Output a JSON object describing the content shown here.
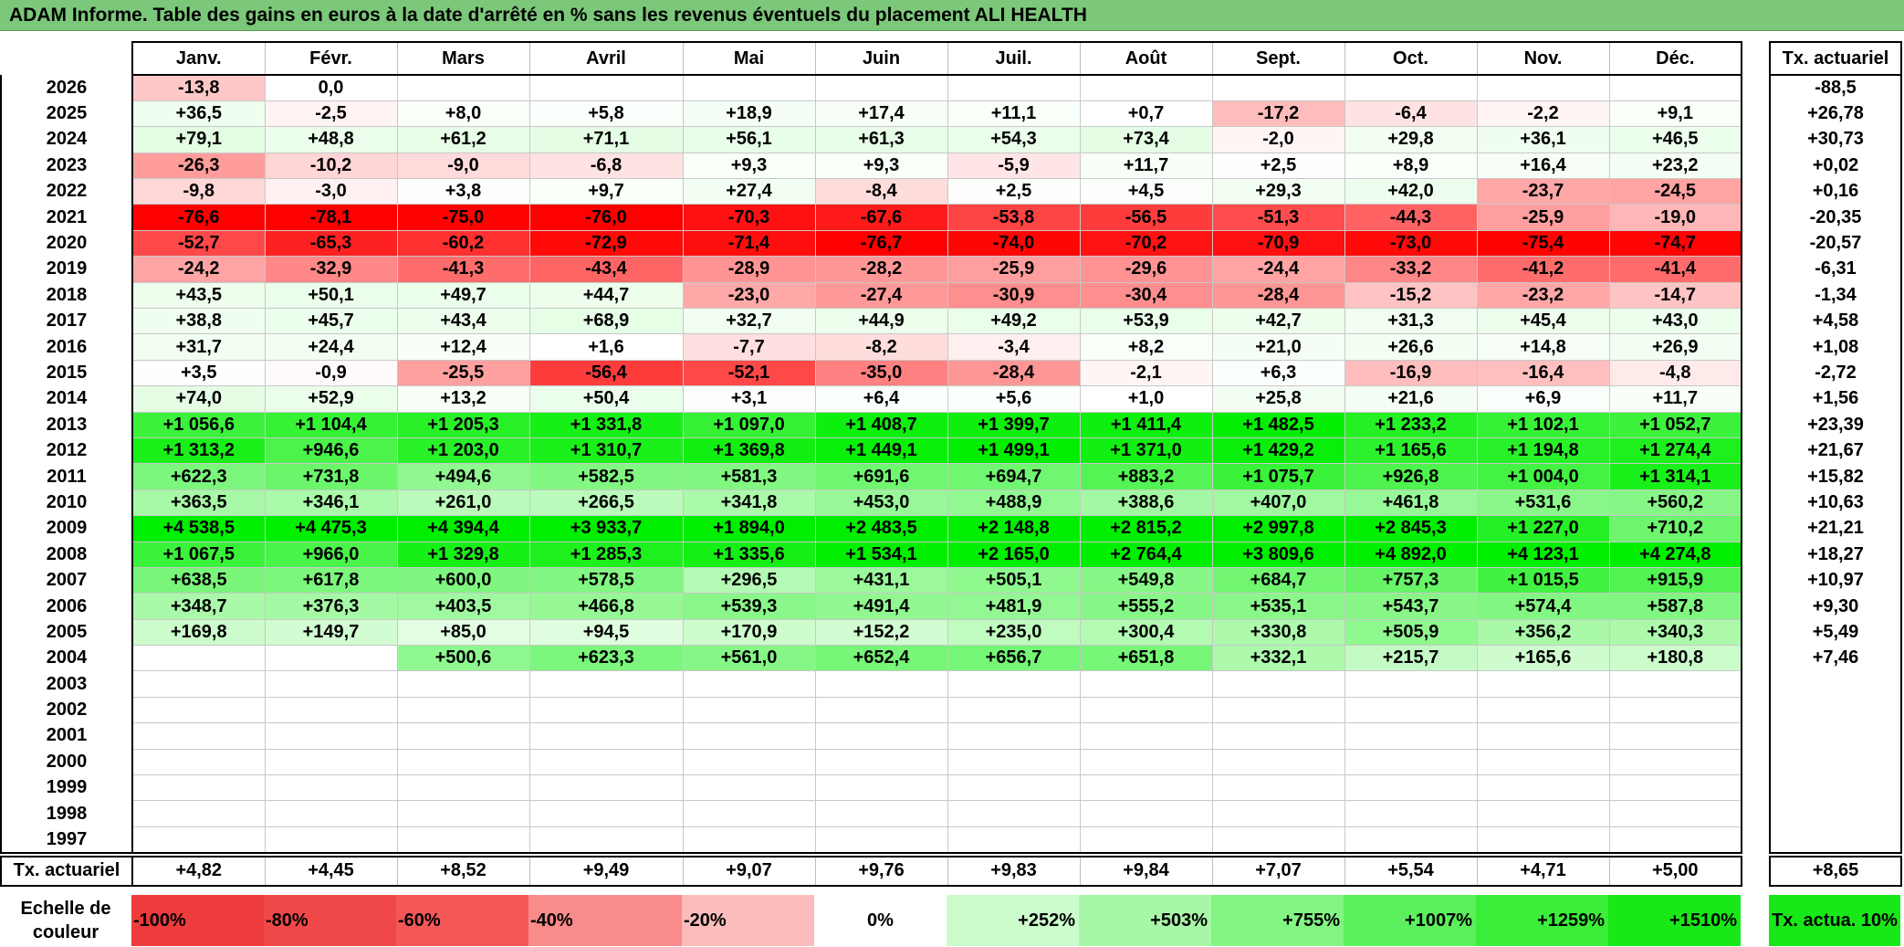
{
  "title": "ADAM Informe. Table des gains en euros à la date d'arrêté en % sans les revenus éventuels du placement ALI HEALTH",
  "months": [
    "Janv.",
    "Févr.",
    "Mars",
    "Avril",
    "Mai",
    "Juin",
    "Juil.",
    "Août",
    "Sept.",
    "Oct.",
    "Nov.",
    "Déc."
  ],
  "annual_header": "Tx. actuariel",
  "rows": [
    {
      "year": "2026",
      "cells": [
        "-13,8",
        "0,0",
        "",
        "",
        "",
        "",
        "",
        "",
        "",
        "",
        "",
        ""
      ],
      "annual": "-88,5"
    },
    {
      "year": "2025",
      "cells": [
        "+36,5",
        "-2,5",
        "+8,0",
        "+5,8",
        "+18,9",
        "+17,4",
        "+11,1",
        "+0,7",
        "-17,2",
        "-6,4",
        "-2,2",
        "+9,1"
      ],
      "annual": "+26,78"
    },
    {
      "year": "2024",
      "cells": [
        "+79,1",
        "+48,8",
        "+61,2",
        "+71,1",
        "+56,1",
        "+61,3",
        "+54,3",
        "+73,4",
        "-2,0",
        "+29,8",
        "+36,1",
        "+46,5"
      ],
      "annual": "+30,73"
    },
    {
      "year": "2023",
      "cells": [
        "-26,3",
        "-10,2",
        "-9,0",
        "-6,8",
        "+9,3",
        "+9,3",
        "-5,9",
        "+11,7",
        "+2,5",
        "+8,9",
        "+16,4",
        "+23,2"
      ],
      "annual": "+0,02"
    },
    {
      "year": "2022",
      "cells": [
        "-9,8",
        "-3,0",
        "+3,8",
        "+9,7",
        "+27,4",
        "-8,4",
        "+2,5",
        "+4,5",
        "+29,3",
        "+42,0",
        "-23,7",
        "-24,5"
      ],
      "annual": "+0,16"
    },
    {
      "year": "2021",
      "cells": [
        "-76,6",
        "-78,1",
        "-75,0",
        "-76,0",
        "-70,3",
        "-67,6",
        "-53,8",
        "-56,5",
        "-51,3",
        "-44,3",
        "-25,9",
        "-19,0"
      ],
      "annual": "-20,35"
    },
    {
      "year": "2020",
      "cells": [
        "-52,7",
        "-65,3",
        "-60,2",
        "-72,9",
        "-71,4",
        "-76,7",
        "-74,0",
        "-70,2",
        "-70,9",
        "-73,0",
        "-75,4",
        "-74,7"
      ],
      "annual": "-20,57"
    },
    {
      "year": "2019",
      "cells": [
        "-24,2",
        "-32,9",
        "-41,3",
        "-43,4",
        "-28,9",
        "-28,2",
        "-25,9",
        "-29,6",
        "-24,4",
        "-33,2",
        "-41,2",
        "-41,4"
      ],
      "annual": "-6,31"
    },
    {
      "year": "2018",
      "cells": [
        "+43,5",
        "+50,1",
        "+49,7",
        "+44,7",
        "-23,0",
        "-27,4",
        "-30,9",
        "-30,4",
        "-28,4",
        "-15,2",
        "-23,2",
        "-14,7"
      ],
      "annual": "-1,34"
    },
    {
      "year": "2017",
      "cells": [
        "+38,8",
        "+45,7",
        "+43,4",
        "+68,9",
        "+32,7",
        "+44,9",
        "+49,2",
        "+53,9",
        "+42,7",
        "+31,3",
        "+45,4",
        "+43,0"
      ],
      "annual": "+4,58"
    },
    {
      "year": "2016",
      "cells": [
        "+31,7",
        "+24,4",
        "+12,4",
        "+1,6",
        "-7,7",
        "-8,2",
        "-3,4",
        "+8,2",
        "+21,0",
        "+26,6",
        "+14,8",
        "+26,9"
      ],
      "annual": "+1,08"
    },
    {
      "year": "2015",
      "cells": [
        "+3,5",
        "-0,9",
        "-25,5",
        "-56,4",
        "-52,1",
        "-35,0",
        "-28,4",
        "-2,1",
        "+6,3",
        "-16,9",
        "-16,4",
        "-4,8"
      ],
      "annual": "-2,72"
    },
    {
      "year": "2014",
      "cells": [
        "+74,0",
        "+52,9",
        "+13,2",
        "+50,4",
        "+3,1",
        "+6,4",
        "+5,6",
        "+1,0",
        "+25,8",
        "+21,6",
        "+6,9",
        "+11,7"
      ],
      "annual": "+1,56"
    },
    {
      "year": "2013",
      "cells": [
        "+1 056,6",
        "+1 104,4",
        "+1 205,3",
        "+1 331,8",
        "+1 097,0",
        "+1 408,7",
        "+1 399,7",
        "+1 411,4",
        "+1 482,5",
        "+1 233,2",
        "+1 102,1",
        "+1 052,7"
      ],
      "annual": "+23,39"
    },
    {
      "year": "2012",
      "cells": [
        "+1 313,2",
        "+946,6",
        "+1 203,0",
        "+1 310,7",
        "+1 369,8",
        "+1 449,1",
        "+1 499,1",
        "+1 371,0",
        "+1 429,2",
        "+1 165,6",
        "+1 194,8",
        "+1 274,4"
      ],
      "annual": "+21,67"
    },
    {
      "year": "2011",
      "cells": [
        "+622,3",
        "+731,8",
        "+494,6",
        "+582,5",
        "+581,3",
        "+691,6",
        "+694,7",
        "+883,2",
        "+1 075,7",
        "+926,8",
        "+1 004,0",
        "+1 314,1"
      ],
      "annual": "+15,82"
    },
    {
      "year": "2010",
      "cells": [
        "+363,5",
        "+346,1",
        "+261,0",
        "+266,5",
        "+341,8",
        "+453,0",
        "+488,9",
        "+388,6",
        "+407,0",
        "+461,8",
        "+531,6",
        "+560,2"
      ],
      "annual": "+10,63"
    },
    {
      "year": "2009",
      "cells": [
        "+4 538,5",
        "+4 475,3",
        "+4 394,4",
        "+3 933,7",
        "+1 894,0",
        "+2 483,5",
        "+2 148,8",
        "+2 815,2",
        "+2 997,8",
        "+2 845,3",
        "+1 227,0",
        "+710,2"
      ],
      "annual": "+21,21"
    },
    {
      "year": "2008",
      "cells": [
        "+1 067,5",
        "+966,0",
        "+1 329,8",
        "+1 285,3",
        "+1 335,6",
        "+1 534,1",
        "+2 165,0",
        "+2 764,4",
        "+3 809,6",
        "+4 892,0",
        "+4 123,1",
        "+4 274,8"
      ],
      "annual": "+18,27"
    },
    {
      "year": "2007",
      "cells": [
        "+638,5",
        "+617,8",
        "+600,0",
        "+578,5",
        "+296,5",
        "+431,1",
        "+505,1",
        "+549,8",
        "+684,7",
        "+757,3",
        "+1 015,5",
        "+915,9"
      ],
      "annual": "+10,97"
    },
    {
      "year": "2006",
      "cells": [
        "+348,7",
        "+376,3",
        "+403,5",
        "+466,8",
        "+539,3",
        "+491,4",
        "+481,9",
        "+555,2",
        "+535,1",
        "+543,7",
        "+574,4",
        "+587,8"
      ],
      "annual": "+9,30"
    },
    {
      "year": "2005",
      "cells": [
        "+169,8",
        "+149,7",
        "+85,0",
        "+94,5",
        "+170,9",
        "+152,2",
        "+235,0",
        "+300,4",
        "+330,8",
        "+505,9",
        "+356,2",
        "+340,3"
      ],
      "annual": "+5,49"
    },
    {
      "year": "2004",
      "cells": [
        "",
        "",
        "+500,6",
        "+623,3",
        "+561,0",
        "+652,4",
        "+656,7",
        "+651,8",
        "+332,1",
        "+215,7",
        "+165,6",
        "+180,8"
      ],
      "annual": "+7,46"
    },
    {
      "year": "2003",
      "cells": [
        "",
        "",
        "",
        "",
        "",
        "",
        "",
        "",
        "",
        "",
        "",
        ""
      ],
      "annual": ""
    },
    {
      "year": "2002",
      "cells": [
        "",
        "",
        "",
        "",
        "",
        "",
        "",
        "",
        "",
        "",
        "",
        ""
      ],
      "annual": ""
    },
    {
      "year": "2001",
      "cells": [
        "",
        "",
        "",
        "",
        "",
        "",
        "",
        "",
        "",
        "",
        "",
        ""
      ],
      "annual": ""
    },
    {
      "year": "2000",
      "cells": [
        "",
        "",
        "",
        "",
        "",
        "",
        "",
        "",
        "",
        "",
        "",
        ""
      ],
      "annual": ""
    },
    {
      "year": "1999",
      "cells": [
        "",
        "",
        "",
        "",
        "",
        "",
        "",
        "",
        "",
        "",
        "",
        ""
      ],
      "annual": ""
    },
    {
      "year": "1998",
      "cells": [
        "",
        "",
        "",
        "",
        "",
        "",
        "",
        "",
        "",
        "",
        "",
        ""
      ],
      "annual": ""
    },
    {
      "year": "1997",
      "cells": [
        "",
        "",
        "",
        "",
        "",
        "",
        "",
        "",
        "",
        "",
        "",
        ""
      ],
      "annual": ""
    }
  ],
  "tx_row": {
    "label": "Tx. actuariel",
    "values": [
      "+4,82",
      "+4,45",
      "+8,52",
      "+9,49",
      "+9,07",
      "+9,76",
      "+9,83",
      "+9,84",
      "+7,07",
      "+5,54",
      "+4,71",
      "+5,00"
    ],
    "annual": "+8,65"
  },
  "scale": {
    "label": "Echelle de couleur",
    "steps": [
      "-100%",
      "-80%",
      "-60%",
      "-40%",
      "-20%",
      "0%",
      "+252%",
      "+503%",
      "+755%",
      "+1007%",
      "+1259%",
      "+1510%"
    ],
    "step_colors": [
      "#ee3b3b",
      "#f04848",
      "#f45757",
      "#f98b8b",
      "#fcbcbc",
      "#ffffff",
      "#ccfccc",
      "#a8f7a8",
      "#82f582",
      "#5cf05c",
      "#3aee3a",
      "#18e818"
    ],
    "legend": "Tx. actua. 10%",
    "legend_color": "#18e818"
  }
}
